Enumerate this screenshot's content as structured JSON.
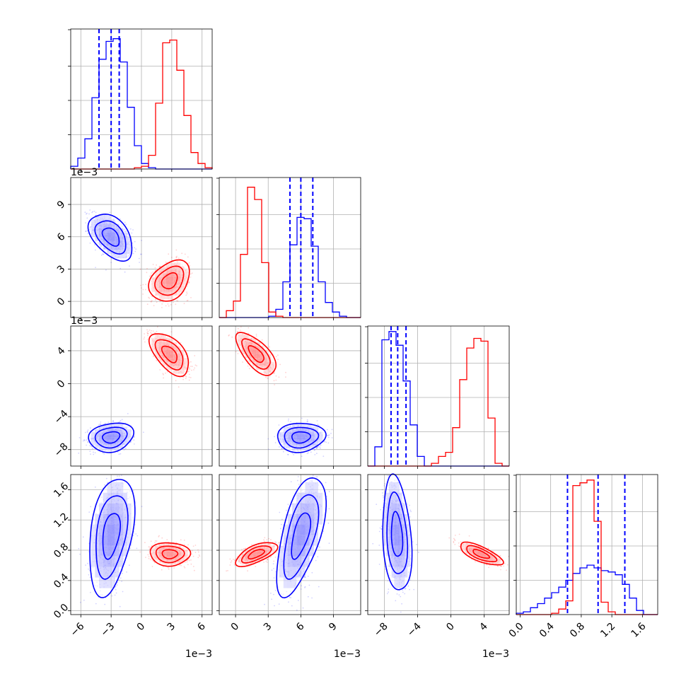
{
  "chart_data": {
    "type": "corner",
    "colors": {
      "series_a": "#0000ff",
      "series_b": "#ff0000",
      "grid": "#b0b0b0"
    },
    "grid": true,
    "num_params": 4,
    "parameters": [
      {
        "range": [
          -7,
          7
        ],
        "ticks": [
          -6,
          -3,
          0,
          3,
          6
        ],
        "tick_labels": [
          "−6",
          "−3",
          "0",
          "3",
          "6"
        ],
        "offset_label": "1e−3"
      },
      {
        "range": [
          -1.5,
          11.5
        ],
        "ticks": [
          0,
          3,
          6,
          9
        ],
        "tick_labels": [
          "0",
          "3",
          "6",
          "9"
        ],
        "offset_label": "1e−3"
      },
      {
        "range": [
          -10,
          7
        ],
        "ticks": [
          -8,
          -4,
          0,
          4
        ],
        "tick_labels": [
          "−8",
          "−4",
          "0",
          "4"
        ],
        "offset_label": "1e−3"
      },
      {
        "range": [
          -0.05,
          1.8
        ],
        "ticks": [
          0.0,
          0.4,
          0.8,
          1.2,
          1.6
        ],
        "tick_labels": [
          "0.0",
          "0.4",
          "0.8",
          "1.2",
          "1.6"
        ]
      }
    ],
    "blue": {
      "means": [
        -3.0,
        6.0,
        -6.5,
        1.0
      ],
      "stds": [
        1.0,
        1.0,
        0.8,
        0.35
      ],
      "quantiles": [
        [
          -4.2,
          -3.0,
          -2.2
        ],
        [
          5.0,
          6.0,
          7.1
        ],
        [
          -7.2,
          -6.4,
          -5.4
        ],
        [
          0.62,
          1.02,
          1.37
        ]
      ],
      "hist_heights": [
        [
          0.02,
          0.08,
          0.22,
          0.52,
          0.8,
          0.93,
          0.95,
          0.78,
          0.45,
          0.17,
          0.04,
          0.01,
          0,
          0,
          0,
          0,
          0,
          0,
          0,
          0
        ],
        [
          0,
          0,
          0,
          0,
          0,
          0,
          0,
          0.01,
          0.06,
          0.26,
          0.53,
          0.73,
          0.72,
          0.52,
          0.26,
          0.11,
          0.04,
          0.01,
          0,
          0
        ],
        [
          0,
          0.14,
          0.92,
          0.98,
          0.88,
          0.62,
          0.3,
          0.07,
          0,
          0,
          0,
          0,
          0,
          0,
          0,
          0,
          0,
          0,
          0,
          0
        ],
        [
          0.01,
          0.02,
          0.05,
          0.08,
          0.12,
          0.16,
          0.2,
          0.25,
          0.3,
          0.34,
          0.36,
          0.34,
          0.32,
          0.31,
          0.29,
          0.22,
          0.12,
          0.03,
          0,
          0
        ]
      ]
    },
    "red": {
      "means": [
        2.8,
        1.9,
        3.6,
        0.75
      ],
      "stds": [
        0.9,
        0.85,
        1.2,
        0.07
      ],
      "quantiles": null,
      "hist_heights": [
        [
          0,
          0,
          0,
          0,
          0,
          0,
          0,
          0,
          0,
          0.01,
          0.02,
          0.1,
          0.48,
          0.92,
          0.94,
          0.72,
          0.39,
          0.12,
          0.04,
          0.01
        ],
        [
          0,
          0.05,
          0.12,
          0.46,
          0.95,
          0.86,
          0.4,
          0.04,
          0.01,
          0,
          0,
          0,
          0,
          0,
          0,
          0,
          0,
          0,
          0,
          0
        ],
        [
          0,
          0,
          0,
          0,
          0,
          0,
          0,
          0,
          0,
          0.02,
          0.07,
          0.1,
          0.28,
          0.63,
          0.86,
          0.93,
          0.91,
          0.35,
          0.02,
          0
        ],
        [
          0,
          0,
          0,
          0,
          0,
          0.01,
          0.04,
          0.1,
          0.94,
          0.96,
          0.98,
          0.68,
          0.09,
          0.02,
          0,
          0,
          0,
          0,
          0,
          0
        ]
      ]
    },
    "correlations": {
      "blue": {
        "0-1": -0.5,
        "0-2": 0.1,
        "1-2": 0.0,
        "0-3": 0.3,
        "1-3": 0.55,
        "2-3": -0.3
      },
      "red": {
        "0-1": 0.25,
        "0-2": -0.6,
        "1-2": -0.7,
        "0-3": -0.1,
        "1-3": 0.6,
        "2-3": -0.75
      }
    }
  }
}
